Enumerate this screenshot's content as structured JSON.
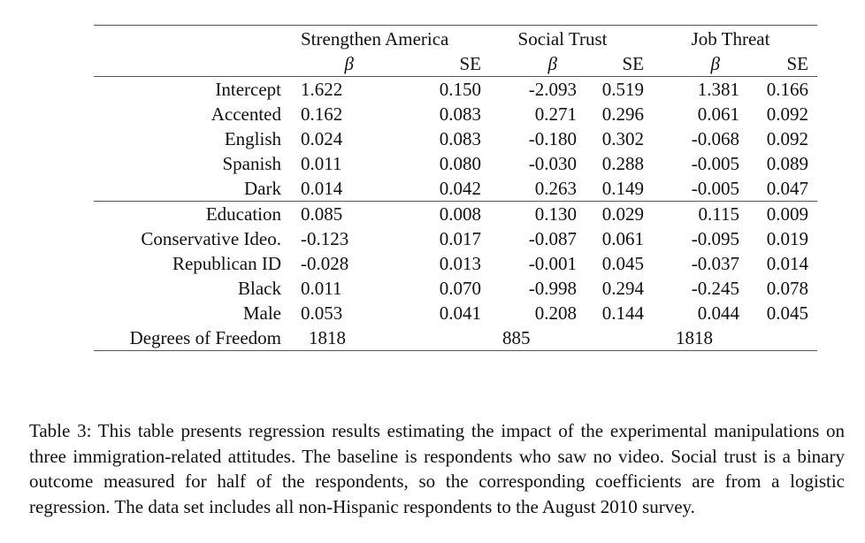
{
  "table": {
    "groups": [
      "Strengthen America",
      "Social Trust",
      "Job Threat"
    ],
    "subheaders": [
      "β",
      "SE",
      "β",
      "SE",
      "β",
      "SE"
    ],
    "rows": [
      {
        "label": "Intercept",
        "v": [
          "1.622",
          "0.150",
          "-2.093",
          "0.519",
          "1.381",
          "0.166"
        ]
      },
      {
        "label": "Accented",
        "v": [
          "0.162",
          "0.083",
          "0.271",
          "0.296",
          "0.061",
          "0.092"
        ]
      },
      {
        "label": "English",
        "v": [
          "0.024",
          "0.083",
          "-0.180",
          "0.302",
          "-0.068",
          "0.092"
        ]
      },
      {
        "label": "Spanish",
        "v": [
          "0.011",
          "0.080",
          "-0.030",
          "0.288",
          "-0.005",
          "0.089"
        ]
      },
      {
        "label": "Dark",
        "v": [
          "0.014",
          "0.042",
          "0.263",
          "0.149",
          "-0.005",
          "0.047"
        ]
      },
      {
        "label": "Education",
        "v": [
          "0.085",
          "0.008",
          "0.130",
          "0.029",
          "0.115",
          "0.009"
        ]
      },
      {
        "label": "Conservative Ideo.",
        "v": [
          "-0.123",
          "0.017",
          "-0.087",
          "0.061",
          "-0.095",
          "0.019"
        ]
      },
      {
        "label": "Republican ID",
        "v": [
          "-0.028",
          "0.013",
          "-0.001",
          "0.045",
          "-0.037",
          "0.014"
        ]
      },
      {
        "label": "Black",
        "v": [
          "0.011",
          "0.070",
          "-0.998",
          "0.294",
          "-0.245",
          "0.078"
        ]
      },
      {
        "label": "Male",
        "v": [
          "0.053",
          "0.041",
          "0.208",
          "0.144",
          "0.044",
          "0.045"
        ]
      }
    ],
    "dof": {
      "label": "Degrees of Freedom",
      "v": [
        "1818",
        "885",
        "1818"
      ]
    }
  },
  "caption": "Table 3: This table presents regression results estimating the impact of the experimental manipulations on three immigration-related attitudes. The baseline is respondents who saw no video. Social trust is a binary outcome measured for half of the respondents, so the corresponding coefficients are from a logistic regression. The data set includes all non-Hispanic respondents to the August 2010 survey."
}
